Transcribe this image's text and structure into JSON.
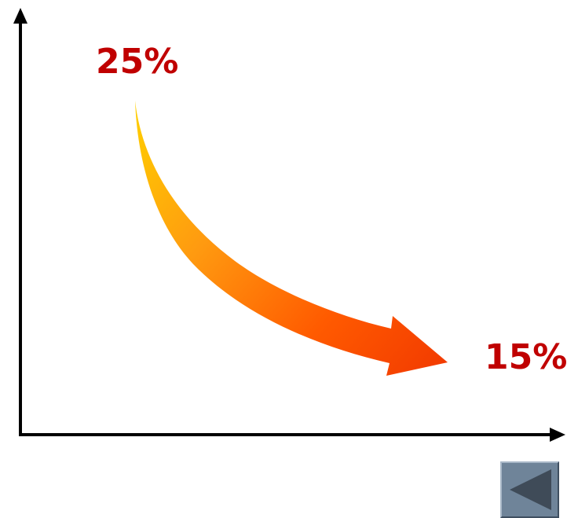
{
  "diagram": {
    "start_label": "25%",
    "end_label": "15%",
    "colors": {
      "axis": "#000000",
      "label": "#c00000",
      "arrow_gradient": [
        "#ffd000",
        "#ff9a10",
        "#ff5a00",
        "#f23a00"
      ]
    }
  },
  "navigation": {
    "back_button_icon": "triangle-left-icon",
    "colors": {
      "button": "#6f8499",
      "glyph": "#3f4b58"
    }
  }
}
